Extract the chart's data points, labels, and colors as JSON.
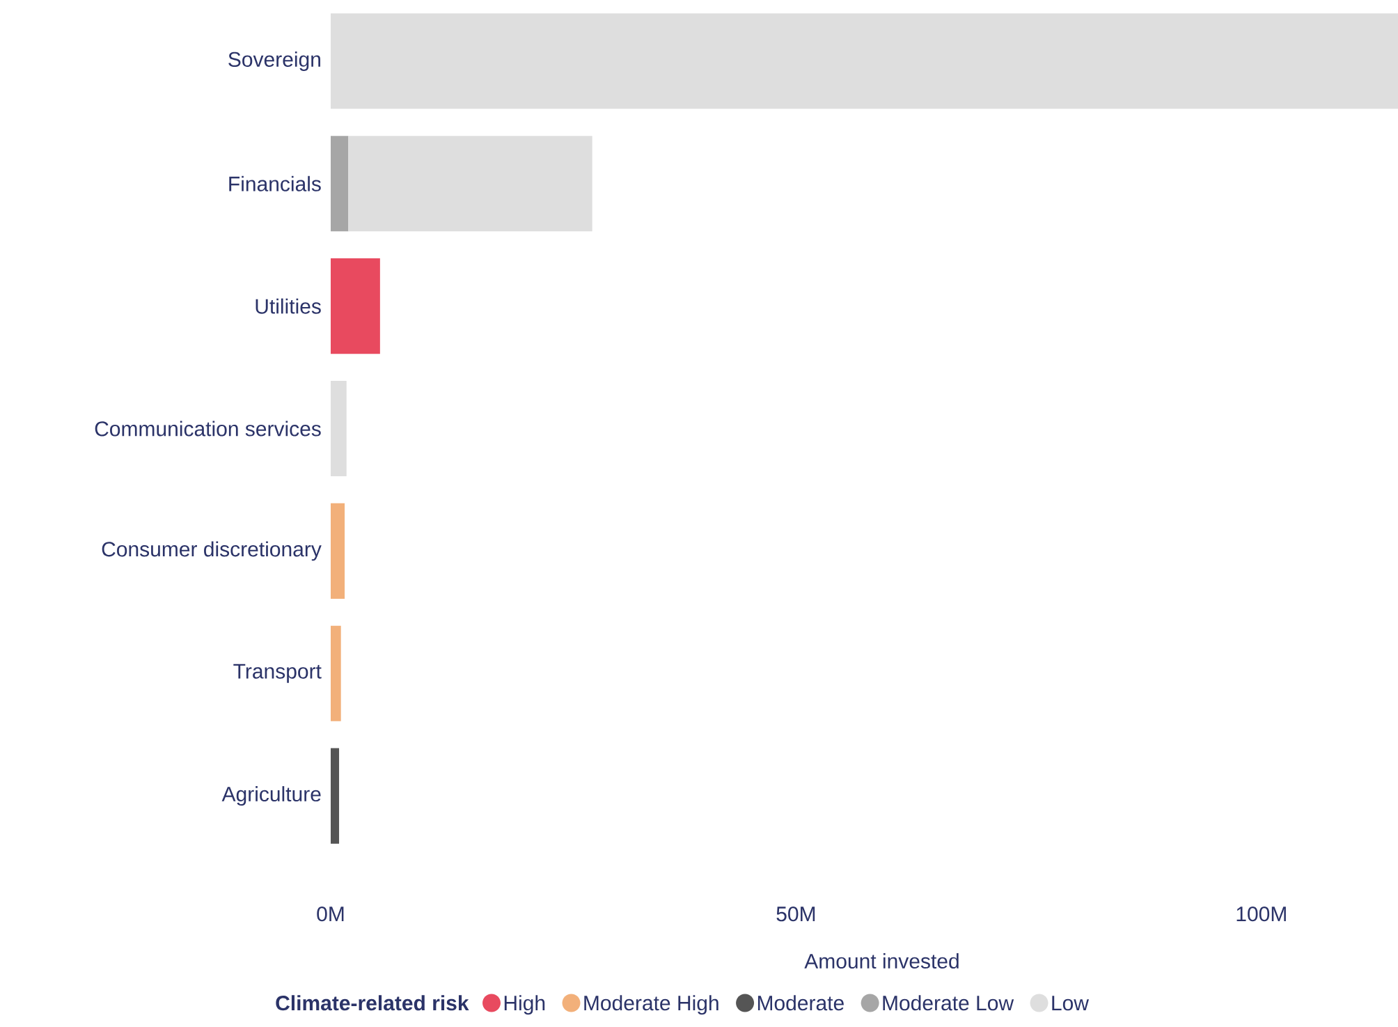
{
  "chart_data": {
    "type": "bar",
    "orientation": "horizontal",
    "stacked": true,
    "xlabel": "Amount invested",
    "legend_title": "Climate-related risk",
    "legend": "bottom",
    "grid": false,
    "marker": "circle",
    "categories": [
      "Sovereign",
      "Financials",
      "Utilities",
      "Communication services",
      "Consumer discretionary",
      "Transport",
      "Agriculture"
    ],
    "xlim": [
      0,
      114.9
    ],
    "xticks": [
      {
        "value": 0,
        "label": "0M"
      },
      {
        "value": 50,
        "label": "50M"
      },
      {
        "value": 100,
        "label": "100M"
      }
    ],
    "series": [
      {
        "name": "High",
        "color": "#e84a5f",
        "values": [
          null,
          null,
          5.3,
          null,
          null,
          null,
          null
        ]
      },
      {
        "name": "Moderate High",
        "color": "#f2b07a",
        "values": [
          null,
          null,
          null,
          null,
          1.5,
          1.1,
          null
        ]
      },
      {
        "name": "Moderate",
        "color": "#555555",
        "values": [
          null,
          null,
          null,
          null,
          null,
          null,
          0.9
        ]
      },
      {
        "name": "Moderate Low",
        "color": "#a6a6a6",
        "values": [
          null,
          1.9,
          null,
          null,
          null,
          null,
          null
        ]
      },
      {
        "name": "Low",
        "color": "#dedede",
        "values": [
          114.9,
          26.2,
          null,
          1.7,
          null,
          null,
          null
        ]
      }
    ]
  }
}
